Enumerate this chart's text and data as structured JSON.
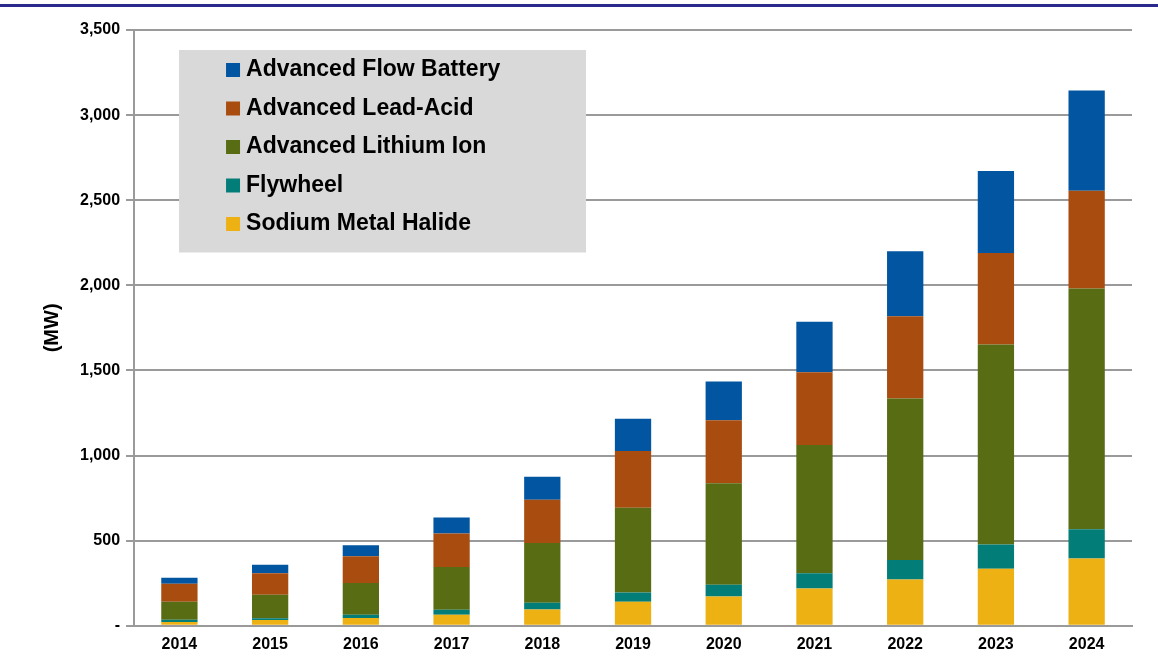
{
  "chart_data": {
    "type": "bar",
    "stacked": true,
    "ylabel": "(MW)",
    "categories": [
      "2014",
      "2015",
      "2016",
      "2017",
      "2018",
      "2019",
      "2020",
      "2021",
      "2022",
      "2023",
      "2024"
    ],
    "series": [
      {
        "name": "Sodium Metal Halide",
        "color": "#eeb114",
        "values": [
          23,
          34,
          46,
          65,
          96,
          141,
          172,
          219,
          272,
          335,
          395
        ]
      },
      {
        "name": "Flywheel",
        "color": "#037d78",
        "values": [
          13,
          10,
          19,
          29,
          40,
          55,
          69,
          89,
          114,
          143,
          172
        ]
      },
      {
        "name": "Advanced Lithium Ion",
        "color": "#586c14",
        "values": [
          106,
          138,
          186,
          251,
          350,
          498,
          596,
          754,
          949,
          1174,
          1414
        ]
      },
      {
        "name": "Advanced Lead-Acid",
        "color": "#a84c10",
        "values": [
          105,
          126,
          157,
          197,
          255,
          333,
          371,
          427,
          484,
          538,
          575
        ]
      },
      {
        "name": "Advanced Flow Battery",
        "color": "#0255a0",
        "values": [
          36,
          50,
          65,
          94,
          134,
          189,
          227,
          297,
          382,
          481,
          588
        ]
      }
    ],
    "ylim": [
      0,
      3500
    ],
    "yticks": [
      {
        "value": 0,
        "label": "-"
      },
      500,
      {
        "value": 1000,
        "label": "1,000"
      },
      {
        "value": 1500,
        "label": "1,500"
      },
      {
        "value": 2000,
        "label": "2,000"
      },
      {
        "value": 2500,
        "label": "2,500"
      },
      {
        "value": 3000,
        "label": "3,000"
      },
      {
        "value": 3500,
        "label": "3,500"
      }
    ],
    "grid": "y",
    "legend": "top left"
  }
}
